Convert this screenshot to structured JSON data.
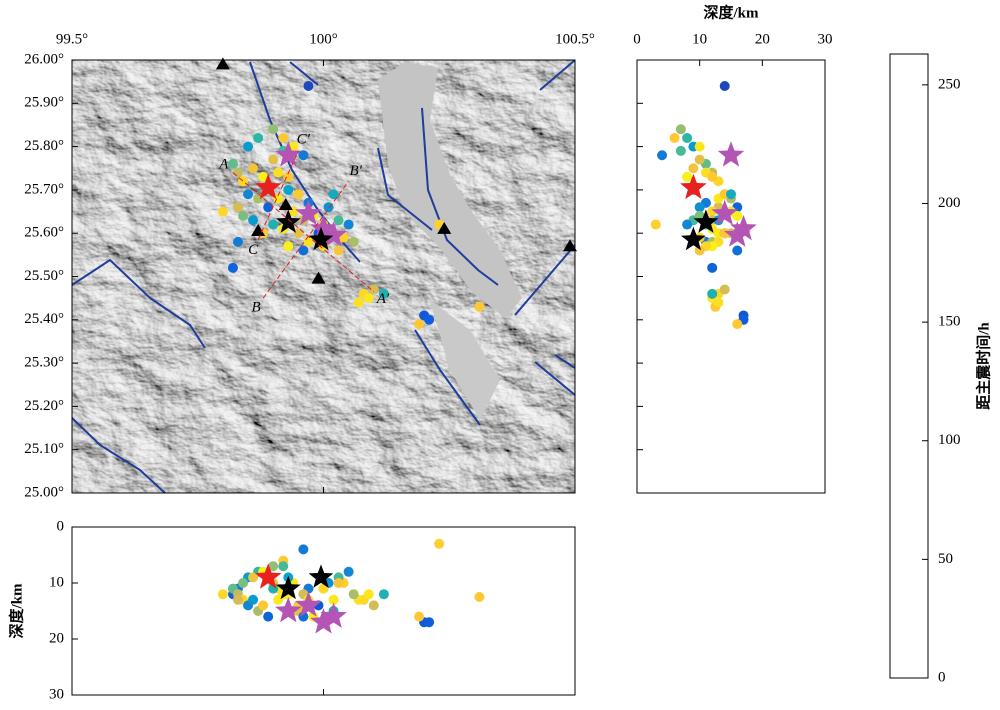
{
  "chart_data": {
    "type": "scatter",
    "x": [
      99.97,
      99.82,
      99.83,
      100.2,
      100.21,
      100.19,
      100.23,
      100.31,
      100.08,
      100.09,
      100.1,
      100.12,
      100.07,
      99.85,
      99.87,
      99.9,
      99.92,
      99.94,
      99.96,
      99.82,
      99.83,
      99.84,
      99.86,
      99.88,
      99.9,
      99.91,
      99.93,
      99.85,
      99.83,
      99.8,
      99.87,
      99.89,
      99.91,
      99.93,
      99.95,
      99.97,
      99.94,
      99.96,
      99.98,
      100.0,
      100.02,
      100.04,
      100.06,
      100.01,
      100.03,
      99.99,
      99.97,
      99.95,
      99.92,
      99.9,
      99.88,
      99.86,
      99.93,
      99.96,
      100.0,
      100.03,
      100.05,
      99.84,
      99.92,
      100.02
    ],
    "y": [
      25.94,
      25.52,
      25.58,
      25.41,
      25.4,
      25.39,
      25.62,
      25.43,
      25.46,
      25.45,
      25.47,
      25.46,
      25.44,
      25.8,
      25.82,
      25.84,
      25.82,
      25.8,
      25.78,
      25.76,
      25.74,
      25.72,
      25.75,
      25.73,
      25.77,
      25.74,
      25.73,
      25.69,
      25.66,
      25.65,
      25.68,
      25.66,
      25.68,
      25.7,
      25.69,
      25.67,
      25.65,
      25.63,
      25.64,
      25.62,
      25.6,
      25.59,
      25.58,
      25.66,
      25.63,
      25.6,
      25.58,
      25.6,
      25.61,
      25.62,
      25.6,
      25.63,
      25.57,
      25.56,
      25.57,
      25.56,
      25.62,
      25.64,
      25.79,
      25.69
    ],
    "depth": [
      14,
      12,
      11,
      17,
      17,
      16,
      3,
      12.5,
      13,
      12,
      14,
      12,
      13,
      9,
      8,
      7,
      6,
      10,
      4,
      11,
      12,
      13,
      9,
      8,
      10,
      11,
      12,
      14,
      13,
      12,
      15,
      16,
      13,
      9,
      14,
      11,
      15,
      12,
      16,
      11,
      13,
      10,
      12,
      10,
      9,
      14,
      13,
      15,
      12,
      11,
      14,
      13,
      12,
      16,
      11,
      10,
      8,
      10,
      7,
      15
    ],
    "c": [
      20,
      40,
      60,
      30,
      35,
      230,
      235,
      230,
      240,
      250,
      200,
      120,
      245,
      90,
      130,
      170,
      230,
      250,
      60,
      150,
      190,
      240,
      220,
      255,
      210,
      245,
      230,
      70,
      200,
      240,
      180,
      40,
      250,
      100,
      230,
      60,
      245,
      200,
      255,
      220,
      250,
      235,
      180,
      80,
      140,
      30,
      245,
      210,
      250,
      120,
      230,
      90,
      255,
      50,
      240,
      225,
      70,
      160,
      140,
      110
    ],
    "mainshock": {
      "lon": 99.89,
      "lat": 25.705,
      "depth": 9,
      "color": "#e8201e"
    },
    "large_events": {
      "lon": [
        99.93,
        99.995
      ],
      "lat": [
        25.625,
        25.585
      ],
      "depth": [
        11,
        9
      ],
      "color": "#000000"
    },
    "moderate_events": {
      "lon": [
        99.93,
        99.97,
        100.0,
        100.02
      ],
      "lat": [
        25.78,
        25.645,
        25.61,
        25.595
      ],
      "depth": [
        15,
        14,
        17,
        16
      ],
      "color": "#b455b6"
    },
    "stations": {
      "lon": [
        99.8,
        99.87,
        99.925,
        99.99,
        100.24,
        100.49
      ],
      "lat": [
        25.99,
        25.605,
        25.665,
        25.495,
        25.61,
        25.57
      ],
      "color": "#000000"
    },
    "profiles": [
      {
        "labels": [
          "A",
          "A′"
        ],
        "lon": [
          99.82,
          100.1
        ],
        "lat": [
          25.74,
          25.465
        ]
      },
      {
        "labels": [
          "B",
          "B′"
        ],
        "lon": [
          99.88,
          100.05
        ],
        "lat": [
          25.45,
          25.72
        ]
      },
      {
        "labels": [
          "C",
          "C′"
        ],
        "lon": [
          99.87,
          99.95
        ],
        "lat": [
          25.585,
          25.79
        ]
      }
    ],
    "profile_color": "#e02020",
    "map": {
      "xlim": [
        99.5,
        100.5
      ],
      "xticks": [
        {
          "value": 99.5,
          "label": "99.5°"
        },
        {
          "value": 100,
          "label": "100°"
        },
        {
          "value": 100.5,
          "label": "100.5°"
        }
      ],
      "ylim": [
        25.0,
        26.0
      ],
      "yticks": [
        {
          "value": 25.0,
          "label": "25.00°"
        },
        {
          "value": 25.1,
          "label": "25.10°"
        },
        {
          "value": 25.2,
          "label": "25.20°"
        },
        {
          "value": 25.3,
          "label": "25.30°"
        },
        {
          "value": 25.4,
          "label": "25.40°"
        },
        {
          "value": 25.5,
          "label": "25.50°"
        },
        {
          "value": 25.6,
          "label": "25.60°"
        },
        {
          "value": 25.7,
          "label": "25.70°"
        },
        {
          "value": 25.8,
          "label": "25.80°"
        },
        {
          "value": 25.9,
          "label": "25.90°"
        },
        {
          "value": 26.0,
          "label": "26.00°"
        }
      ]
    },
    "depth_panel": {
      "xlabel": "深度/km",
      "xlim": [
        0,
        30
      ],
      "xticks": [
        0,
        10,
        20,
        30
      ]
    },
    "lon_depth_panel": {
      "ylabel": "深度/km",
      "ylim": [
        0,
        30
      ],
      "yticks": [
        0,
        10,
        20,
        30
      ],
      "y_inverted": true
    },
    "colorbar": {
      "label": "距主震时间/h",
      "lim": [
        0,
        263
      ],
      "ticks": [
        0,
        50,
        100,
        150,
        200,
        250
      ],
      "colormap": [
        "#352a87",
        "#0f5cdd",
        "#1481d6",
        "#06a4ca",
        "#2eb7a4",
        "#87bf77",
        "#d1bb59",
        "#fec832",
        "#f9fb0e"
      ]
    }
  }
}
